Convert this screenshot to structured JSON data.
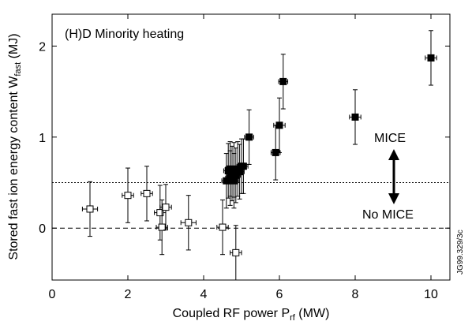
{
  "chart_data": {
    "type": "scatter",
    "annotation": "(H)D Minority heating",
    "above_label": "MICE",
    "below_label": "No MICE",
    "figure_id": "JG99.329/3c",
    "x_label": {
      "text": "Coupled RF power P",
      "sub": "rf",
      "after": " (MW)"
    },
    "y_label": {
      "text": "Stored fast ion energy content W",
      "sub": "fast",
      "after": " (MJ)"
    },
    "xlim": [
      0,
      10.5
    ],
    "ylim": [
      -0.57,
      2.35
    ],
    "xticks": [
      0,
      2,
      4,
      6,
      8,
      10
    ],
    "yticks": [
      0,
      1,
      2
    ],
    "hlines": [
      {
        "value": 0.5,
        "style": "dotted"
      },
      {
        "value": 0,
        "style": "dashed"
      }
    ],
    "series": [
      {
        "marker": "open",
        "color": "#000000",
        "x": [
          1.0,
          2.0,
          2.5,
          2.85,
          2.9,
          3.0,
          3.6,
          4.5,
          4.85
        ],
        "values": [
          0.21,
          0.36,
          0.38,
          0.17,
          0.01,
          0.23,
          0.06,
          0.01,
          -0.27
        ],
        "xerr": [
          0.2,
          0.15,
          0.15,
          0.15,
          0.15,
          0.15,
          0.2,
          0.15,
          0.15
        ],
        "yerr": [
          0.3,
          0.3,
          0.3,
          0.3,
          0.3,
          0.25,
          0.3,
          0.3,
          0.3
        ]
      },
      {
        "marker": "filled",
        "color": "#000000",
        "x": [
          4.6,
          4.65,
          4.7,
          4.7,
          4.75,
          4.8,
          4.8,
          4.85,
          4.9,
          4.95,
          5.0,
          5.05,
          5.2,
          5.9,
          6.0,
          6.1,
          8.0,
          10.0
        ],
        "values": [
          0.52,
          0.63,
          0.55,
          0.65,
          0.6,
          0.52,
          0.64,
          0.58,
          0.65,
          0.62,
          0.68,
          0.68,
          1.0,
          0.83,
          1.13,
          1.61,
          1.22,
          1.87
        ],
        "xerr": [
          0.12,
          0.12,
          0.12,
          0.12,
          0.12,
          0.12,
          0.12,
          0.12,
          0.12,
          0.12,
          0.12,
          0.12,
          0.12,
          0.12,
          0.15,
          0.12,
          0.15,
          0.15
        ],
        "yerr": [
          0.3,
          0.3,
          0.3,
          0.3,
          0.3,
          0.3,
          0.3,
          0.3,
          0.3,
          0.3,
          0.3,
          0.3,
          0.3,
          0.3,
          0.3,
          0.3,
          0.3,
          0.3
        ]
      }
    ]
  }
}
